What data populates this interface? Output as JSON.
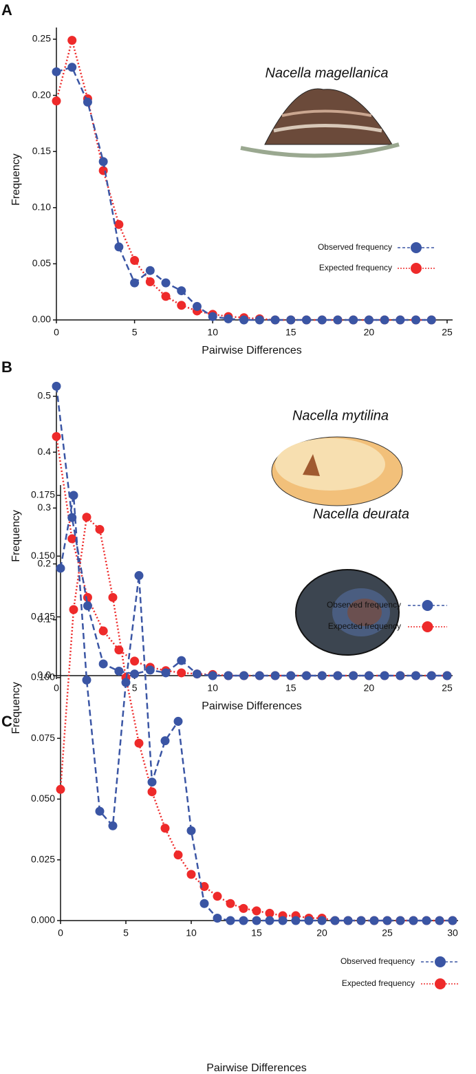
{
  "chart_data": [
    {
      "type": "line",
      "label": "A",
      "title": "Nacella magellanica",
      "xlabel": "Pairwise Differences",
      "ylabel": "Frequency",
      "x": [
        0,
        1,
        2,
        3,
        4,
        5,
        6,
        7,
        8,
        9,
        10,
        11,
        12,
        13,
        14,
        15,
        16,
        17,
        18,
        19,
        20,
        21,
        22,
        23,
        24
      ],
      "series": [
        {
          "name": "Observed frequency",
          "color": "#3a55a4",
          "linestyle": "dashed",
          "values": [
            0.221,
            0.225,
            0.194,
            0.141,
            0.065,
            0.033,
            0.044,
            0.033,
            0.026,
            0.012,
            0.003,
            0.001,
            0,
            0,
            0,
            0,
            0,
            0,
            0,
            0,
            0,
            0,
            0,
            0,
            0
          ]
        },
        {
          "name": "Expected frequency",
          "color": "#ee2a2a",
          "linestyle": "dotted",
          "values": [
            0.195,
            0.249,
            0.197,
            0.133,
            0.085,
            0.053,
            0.034,
            0.021,
            0.013,
            0.008,
            0.005,
            0.003,
            0.002,
            0.001,
            0,
            0,
            0,
            0,
            0,
            0,
            0,
            0,
            0,
            0,
            0
          ]
        }
      ],
      "xlim": [
        0,
        25
      ],
      "xticks": [
        0,
        5,
        10,
        15,
        20,
        25
      ],
      "ylim": [
        0,
        0.25
      ],
      "yticks": [
        {
          "value": 0,
          "label": "0.00"
        },
        0.05,
        {
          "value": 0.1,
          "label": "0.10"
        },
        0.15,
        {
          "value": 0.2,
          "label": "0.20"
        },
        0.25
      ],
      "legend": "right"
    },
    {
      "type": "line",
      "label": "B",
      "title": "Nacella mytilina",
      "xlabel": "Pairwise Differences",
      "ylabel": "Frequency",
      "x": [
        0,
        1,
        2,
        3,
        4,
        5,
        6,
        7,
        8,
        9,
        10,
        11,
        12,
        13,
        14,
        15,
        16,
        17,
        18,
        19,
        20,
        21,
        22,
        23,
        24,
        25
      ],
      "series": [
        {
          "name": "Observed frequency",
          "color": "#3a55a4",
          "linestyle": "dashed",
          "values": [
            0.518,
            0.283,
            0.125,
            0.021,
            0.008,
            0.003,
            0.01,
            0.005,
            0.027,
            0.003,
            0,
            0,
            0,
            0,
            0,
            0,
            0,
            0,
            0,
            0,
            0,
            0,
            0,
            0,
            0,
            0
          ]
        },
        {
          "name": "Expected frequency",
          "color": "#ee2a2a",
          "linestyle": "dotted",
          "values": [
            0.428,
            0.245,
            0.14,
            0.08,
            0.046,
            0.026,
            0.015,
            0.009,
            0.005,
            0.003,
            0.002,
            0,
            0,
            0,
            0,
            0,
            0,
            0,
            0,
            0,
            0,
            0,
            0,
            0,
            0,
            0
          ]
        }
      ],
      "xlim": [
        0,
        25
      ],
      "xticks": [
        0,
        5,
        10,
        15,
        20,
        25
      ],
      "ylim": [
        0,
        0.5
      ],
      "yticks": [
        {
          "value": 0,
          "label": "0.0"
        },
        0.1,
        0.2,
        0.3,
        0.4,
        0.5
      ],
      "legend": "right"
    },
    {
      "type": "line",
      "label": "C",
      "title": "Nacella deurata",
      "xlabel": "Pairwise Differences",
      "ylabel": "Frequency",
      "x": [
        0,
        1,
        2,
        3,
        4,
        5,
        6,
        7,
        8,
        9,
        10,
        11,
        12,
        13,
        14,
        15,
        16,
        17,
        18,
        19,
        20,
        21,
        22,
        23,
        24,
        25,
        26,
        27,
        28,
        29,
        30
      ],
      "series": [
        {
          "name": "Observed frequency",
          "color": "#3a55a4",
          "linestyle": "dashed",
          "values": [
            0.145,
            0.175,
            0.099,
            0.045,
            0.039,
            0.098,
            0.142,
            0.057,
            0.074,
            0.082,
            0.037,
            0.007,
            0.001,
            0,
            0,
            0,
            0,
            0,
            0,
            0,
            0,
            0,
            0,
            0,
            0,
            0,
            0,
            0,
            0,
            0,
            0
          ]
        },
        {
          "name": "Expected frequency",
          "color": "#ee2a2a",
          "linestyle": "dotted",
          "values": [
            0.054,
            0.128,
            0.166,
            0.161,
            0.133,
            0.1,
            0.073,
            0.053,
            0.038,
            0.027,
            0.019,
            0.014,
            0.01,
            0.007,
            0.005,
            0.004,
            0.003,
            0.002,
            0.002,
            0.001,
            0.001,
            0,
            0,
            0,
            0,
            0,
            0,
            0,
            0,
            0,
            0
          ]
        }
      ],
      "xlim": [
        0,
        30
      ],
      "xticks": [
        0,
        5,
        10,
        15,
        20,
        25,
        30
      ],
      "ylim": [
        0,
        0.175
      ],
      "yticks": [
        {
          "value": 0,
          "label": "0.000"
        },
        0.025,
        {
          "value": 0.05,
          "label": "0.050"
        },
        0.075,
        {
          "value": 0.1,
          "label": "0.100"
        },
        0.125,
        {
          "value": 0.15,
          "label": "0.150"
        },
        0.175
      ],
      "legend": "right"
    }
  ]
}
